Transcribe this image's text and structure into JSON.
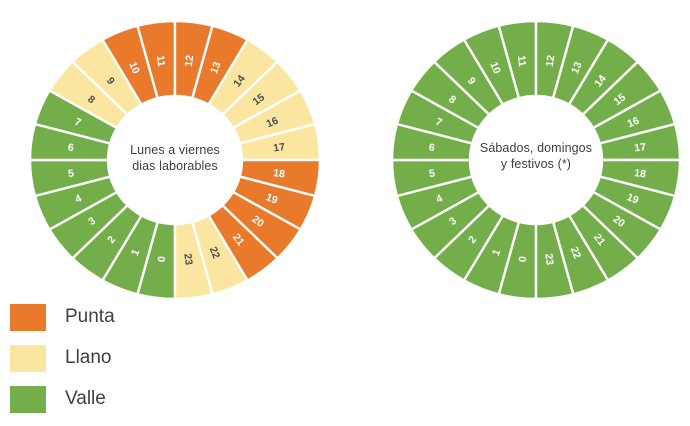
{
  "colors": {
    "punta": "#E97A2C",
    "llano": "#FBE6A1",
    "valle": "#74AE4B",
    "divider": "#FFFFFF",
    "label_light": "#FFFFFF",
    "label_dark": "#4D4D4D",
    "text": "#3F3F3F"
  },
  "chart_data": [
    {
      "type": "donut",
      "name": "weekday-tariff-clock",
      "center_label": [
        "Lunes a viernes",
        "dias laborables"
      ],
      "hours_per_segment": 1,
      "segment_span_deg": 15,
      "segments": [
        {
          "hour": 0,
          "period": "valle"
        },
        {
          "hour": 1,
          "period": "valle"
        },
        {
          "hour": 2,
          "period": "valle"
        },
        {
          "hour": 3,
          "period": "valle"
        },
        {
          "hour": 4,
          "period": "valle"
        },
        {
          "hour": 5,
          "period": "valle"
        },
        {
          "hour": 6,
          "period": "valle"
        },
        {
          "hour": 7,
          "period": "valle"
        },
        {
          "hour": 8,
          "period": "llano"
        },
        {
          "hour": 9,
          "period": "llano"
        },
        {
          "hour": 10,
          "period": "punta"
        },
        {
          "hour": 11,
          "period": "punta"
        },
        {
          "hour": 12,
          "period": "punta"
        },
        {
          "hour": 13,
          "period": "punta"
        },
        {
          "hour": 14,
          "period": "llano"
        },
        {
          "hour": 15,
          "period": "llano"
        },
        {
          "hour": 16,
          "period": "llano"
        },
        {
          "hour": 17,
          "period": "llano"
        },
        {
          "hour": 18,
          "period": "punta"
        },
        {
          "hour": 19,
          "period": "punta"
        },
        {
          "hour": 20,
          "period": "punta"
        },
        {
          "hour": 21,
          "period": "punta"
        },
        {
          "hour": 22,
          "period": "llano"
        },
        {
          "hour": 23,
          "period": "llano"
        }
      ]
    },
    {
      "type": "donut",
      "name": "weekend-tariff-clock",
      "center_label": [
        "Sábados, domingos",
        "y festivos (*)"
      ],
      "hours_per_segment": 1,
      "segment_span_deg": 15,
      "segments": [
        {
          "hour": 0,
          "period": "valle"
        },
        {
          "hour": 1,
          "period": "valle"
        },
        {
          "hour": 2,
          "period": "valle"
        },
        {
          "hour": 3,
          "period": "valle"
        },
        {
          "hour": 4,
          "period": "valle"
        },
        {
          "hour": 5,
          "period": "valle"
        },
        {
          "hour": 6,
          "period": "valle"
        },
        {
          "hour": 7,
          "period": "valle"
        },
        {
          "hour": 8,
          "period": "valle"
        },
        {
          "hour": 9,
          "period": "valle"
        },
        {
          "hour": 10,
          "period": "valle"
        },
        {
          "hour": 11,
          "period": "valle"
        },
        {
          "hour": 12,
          "period": "valle"
        },
        {
          "hour": 13,
          "period": "valle"
        },
        {
          "hour": 14,
          "period": "valle"
        },
        {
          "hour": 15,
          "period": "valle"
        },
        {
          "hour": 16,
          "period": "valle"
        },
        {
          "hour": 17,
          "period": "valle"
        },
        {
          "hour": 18,
          "period": "valle"
        },
        {
          "hour": 19,
          "period": "valle"
        },
        {
          "hour": 20,
          "period": "valle"
        },
        {
          "hour": 21,
          "period": "valle"
        },
        {
          "hour": 22,
          "period": "valle"
        },
        {
          "hour": 23,
          "period": "valle"
        }
      ]
    }
  ],
  "legend": {
    "items": [
      {
        "label": "Punta",
        "period": "punta"
      },
      {
        "label": "Llano",
        "period": "llano"
      },
      {
        "label": "Valle",
        "period": "valle"
      }
    ]
  }
}
